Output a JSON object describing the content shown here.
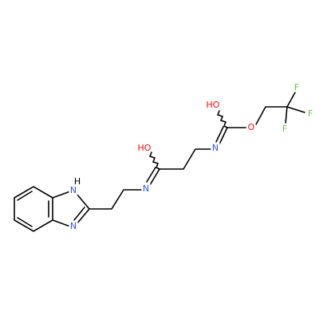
{
  "atoms": {
    "nh_h": "H",
    "nh_n": "N",
    "n3": "N",
    "amide_n1": "N",
    "hydroxyl_1": "HO",
    "amide_n2": "N",
    "hydroxyl_2": "HO",
    "ester_o": "O",
    "fluorine_1": "F",
    "fluorine_2": "F",
    "fluorine_3": "F"
  }
}
